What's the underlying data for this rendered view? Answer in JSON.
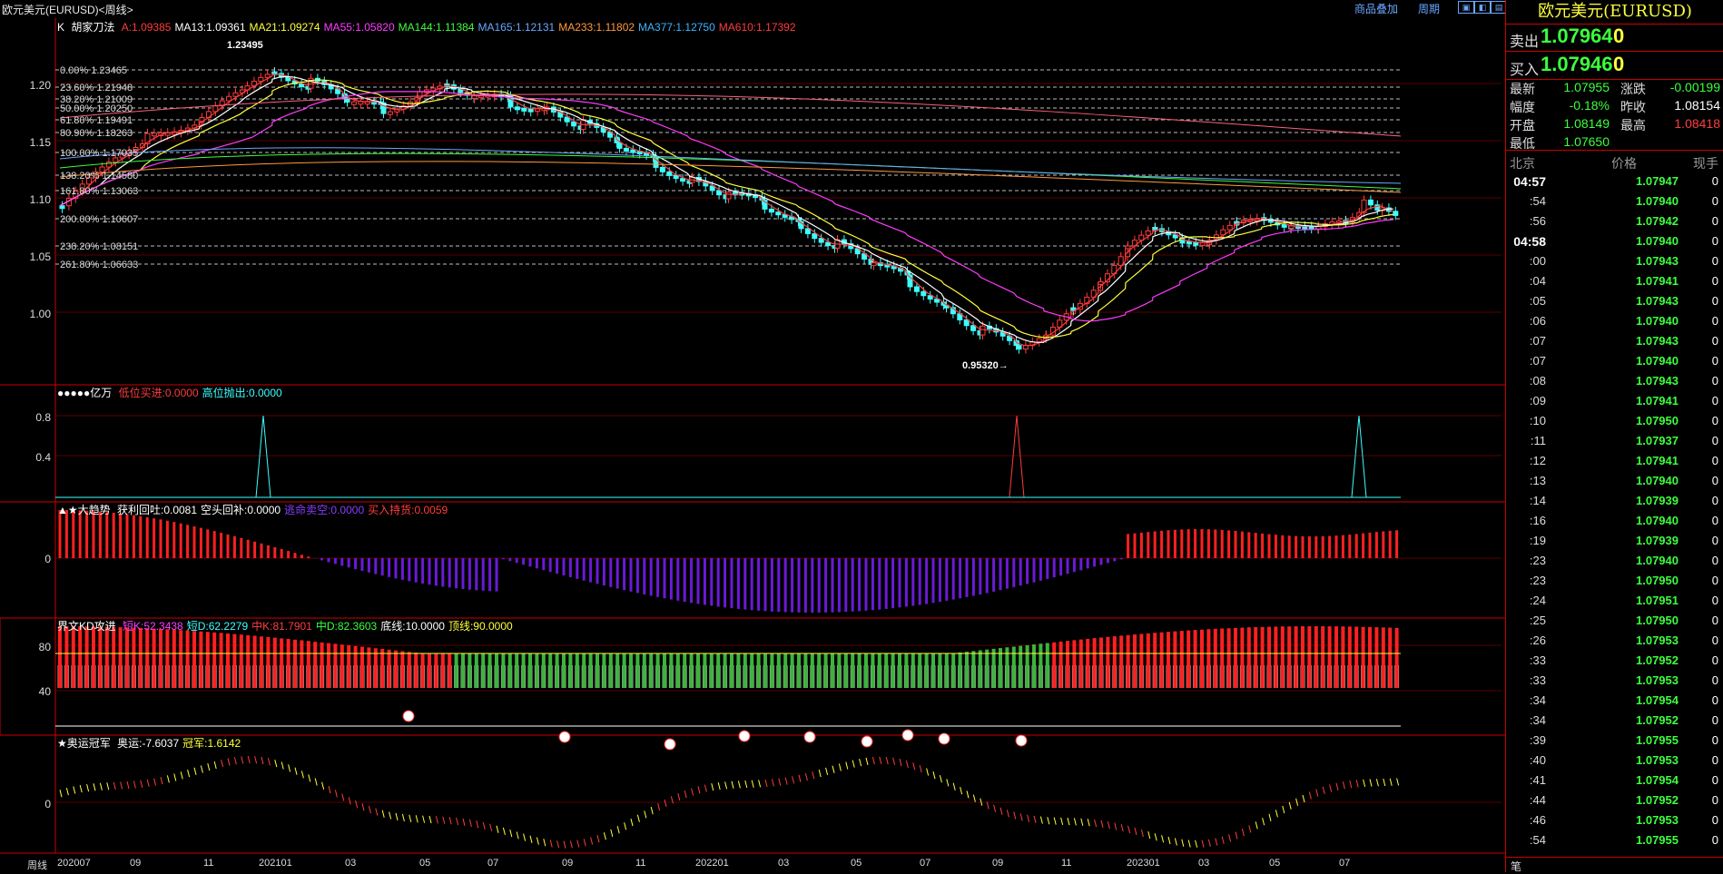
{
  "window": {
    "title": "欧元美元(EURUSD)<周线>",
    "links": [
      "商品叠加",
      "周期"
    ],
    "buttons": [
      "▣",
      "◧",
      "▤"
    ]
  },
  "main_panel": {
    "header_prefix": "K",
    "indicator_name": "胡家刀法",
    "ma_items": [
      {
        "text": "A:1.09385",
        "color": "#ff3c3c"
      },
      {
        "text": "MA13:1.09361",
        "color": "#ffffff"
      },
      {
        "text": "MA21:1.09274",
        "color": "#ffff3c"
      },
      {
        "text": "MA55:1.05820",
        "color": "#ff3cff"
      },
      {
        "text": "MA144:1.11384",
        "color": "#3cff3c"
      },
      {
        "text": "MA165:1.12131",
        "color": "#6aa6ff"
      },
      {
        "text": "MA233:1.11802",
        "color": "#ff9a3c"
      },
      {
        "text": "MA377:1.12750",
        "color": "#3cb4ff"
      },
      {
        "text": "MA610:1.17392",
        "color": "#ff3c3c"
      }
    ],
    "y_labels": [
      "1.20",
      "1.15",
      "1.10",
      "1.05",
      "1.00"
    ],
    "fib_levels": [
      "0.00% 1.23465",
      "23.60% 1.21948",
      "38.20% 1.21009",
      "50.00% 1.20250",
      "61.80% 1.19491",
      "80.90% 1.18263",
      "100.00% 1.17035",
      "138.20% 1.14580",
      "161.80% 1.13063",
      "200.00% 1.10607",
      "238.20% 1.08151",
      "261.80% 1.06633"
    ],
    "high_annotation": "1.23495",
    "low_annotation": "0.95320→"
  },
  "panel2": {
    "name": "●●●●●亿万",
    "items": [
      {
        "text": "低位买进:0.0000",
        "color": "#ff3c3c"
      },
      {
        "text": "高位抛出:0.0000",
        "color": "#3cffff"
      }
    ],
    "y_labels": [
      "0.8",
      "0.4"
    ]
  },
  "panel3": {
    "name": "▲★大趋势",
    "items": [
      {
        "text": "获利回吐:0.0081",
        "color": "#ffffff"
      },
      {
        "text": "空头回补:0.0000",
        "color": "#ffffff"
      },
      {
        "text": "逃命卖空:0.0000",
        "color": "#8a3cff"
      },
      {
        "text": "买入持货:0.0059",
        "color": "#ff3c3c"
      }
    ],
    "y_labels": [
      "0"
    ]
  },
  "panel4": {
    "name": "界文KD攻进",
    "items": [
      {
        "text": "短K:52.3438",
        "color": "#ff3cff"
      },
      {
        "text": "短D:62.2279",
        "color": "#3cffff"
      },
      {
        "text": "中K:81.7901",
        "color": "#ff3c3c"
      },
      {
        "text": "中D:82.3603",
        "color": "#3cff3c"
      },
      {
        "text": "底线:10.0000",
        "color": "#ffffff"
      },
      {
        "text": "顶线:90.0000",
        "color": "#ffff3c"
      }
    ],
    "y_labels": [
      "80",
      "40"
    ]
  },
  "panel5": {
    "name": "★奥运冠军",
    "items": [
      {
        "text": "奥运:-7.6037",
        "color": "#ffffff"
      },
      {
        "text": "冠军:1.6142",
        "color": "#ffff3c"
      }
    ],
    "y_labels": [
      "0"
    ]
  },
  "x_axis": {
    "period_label": "周线",
    "labels": [
      "202007",
      "09",
      "11",
      "202101",
      "03",
      "05",
      "07",
      "09",
      "11",
      "202201",
      "03",
      "05",
      "07",
      "09",
      "11",
      "202301",
      "03",
      "05",
      "07"
    ]
  },
  "quote": {
    "title": "欧元美元(EURUSD)",
    "sell_label": "卖出",
    "sell_price": "1.07964",
    "sell_vol": "0",
    "buy_label": "买入",
    "buy_price": "1.07946",
    "buy_vol": "0",
    "stats": [
      {
        "label": "最新",
        "value": "1.07955",
        "color": "#3cff3c"
      },
      {
        "label": "涨跌",
        "value": "-0.00199",
        "color": "#3cff3c"
      },
      {
        "label": "幅度",
        "value": "-0.18%",
        "color": "#3cff3c"
      },
      {
        "label": "昨收",
        "value": "1.08154",
        "color": "#ffffff"
      },
      {
        "label": "开盘",
        "value": "1.08149",
        "color": "#3cff3c"
      },
      {
        "label": "最高",
        "value": "1.08418",
        "color": "#ff3c3c"
      },
      {
        "label": "最低",
        "value": "1.07650",
        "color": "#3cff3c"
      }
    ],
    "tick_headers": [
      "北京",
      "价格",
      "现手"
    ],
    "ticks": [
      {
        "time": "04:57",
        "price": "1.07947",
        "vol": "0",
        "bold": true
      },
      {
        "time": ":54",
        "price": "1.07940",
        "vol": "0"
      },
      {
        "time": ":56",
        "price": "1.07942",
        "vol": "0"
      },
      {
        "time": "04:58",
        "price": "1.07940",
        "vol": "0",
        "bold": true
      },
      {
        "time": ":00",
        "price": "1.07943",
        "vol": "0"
      },
      {
        "time": ":04",
        "price": "1.07941",
        "vol": "0"
      },
      {
        "time": ":05",
        "price": "1.07943",
        "vol": "0"
      },
      {
        "time": ":06",
        "price": "1.07940",
        "vol": "0"
      },
      {
        "time": ":07",
        "price": "1.07943",
        "vol": "0"
      },
      {
        "time": ":07",
        "price": "1.07940",
        "vol": "0"
      },
      {
        "time": ":08",
        "price": "1.07943",
        "vol": "0"
      },
      {
        "time": ":09",
        "price": "1.07941",
        "vol": "0"
      },
      {
        "time": ":10",
        "price": "1.07950",
        "vol": "0"
      },
      {
        "time": ":11",
        "price": "1.07937",
        "vol": "0"
      },
      {
        "time": ":12",
        "price": "1.07941",
        "vol": "0"
      },
      {
        "time": ":13",
        "price": "1.07940",
        "vol": "0"
      },
      {
        "time": ":14",
        "price": "1.07939",
        "vol": "0"
      },
      {
        "time": ":16",
        "price": "1.07940",
        "vol": "0"
      },
      {
        "time": ":19",
        "price": "1.07939",
        "vol": "0"
      },
      {
        "time": ":23",
        "price": "1.07940",
        "vol": "0"
      },
      {
        "time": ":23",
        "price": "1.07950",
        "vol": "0"
      },
      {
        "time": ":24",
        "price": "1.07951",
        "vol": "0"
      },
      {
        "time": ":25",
        "price": "1.07950",
        "vol": "0"
      },
      {
        "time": ":26",
        "price": "1.07953",
        "vol": "0"
      },
      {
        "time": ":33",
        "price": "1.07952",
        "vol": "0"
      },
      {
        "time": ":33",
        "price": "1.07953",
        "vol": "0"
      },
      {
        "time": ":34",
        "price": "1.07954",
        "vol": "0"
      },
      {
        "time": ":34",
        "price": "1.07952",
        "vol": "0"
      },
      {
        "time": ":39",
        "price": "1.07955",
        "vol": "0"
      },
      {
        "time": ":40",
        "price": "1.07953",
        "vol": "0"
      },
      {
        "time": ":41",
        "price": "1.07954",
        "vol": "0"
      },
      {
        "time": ":44",
        "price": "1.07952",
        "vol": "0"
      },
      {
        "time": ":46",
        "price": "1.07953",
        "vol": "0"
      },
      {
        "time": ":54",
        "price": "1.07955",
        "vol": "0"
      }
    ],
    "bottom_tab": "笔"
  }
}
